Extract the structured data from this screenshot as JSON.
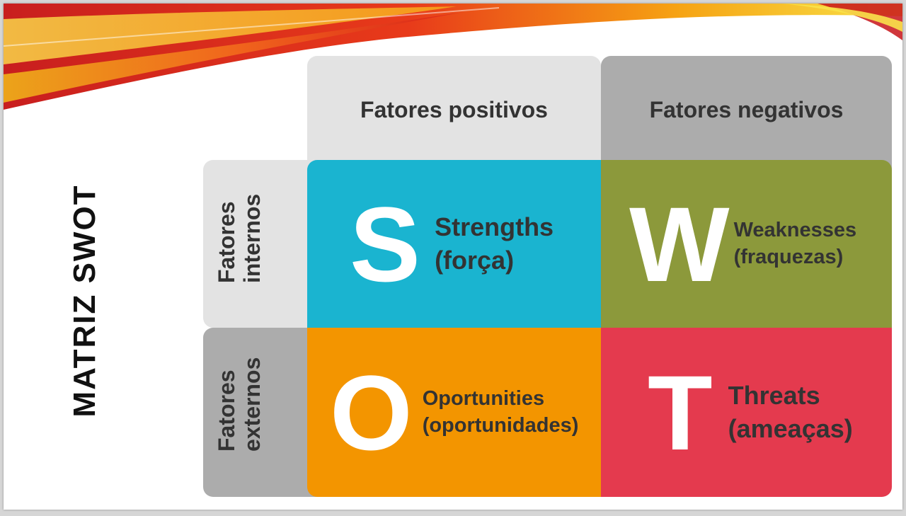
{
  "slide_title": "MATRIZ SWOT",
  "columns": {
    "positive": "Fatores positivos",
    "negative": "Fatores negativos"
  },
  "rows": {
    "internal": [
      "Fatores",
      "internos"
    ],
    "external": [
      "Fatores",
      "externos"
    ]
  },
  "quadrants": {
    "s": {
      "letter": "S",
      "line1": "Strengths",
      "line2": "(força)",
      "color": "#1ab4d0"
    },
    "w": {
      "letter": "W",
      "line1": "Weaknesses",
      "line2": "(fraquezas)",
      "color": "#8c993b"
    },
    "o": {
      "letter": "O",
      "line1": "Oportunities",
      "line2": "(oportunidades)",
      "color": "#f39500"
    },
    "t": {
      "letter": "T",
      "line1": "Threats",
      "line2": "(ameaças)",
      "color": "#e43a4e"
    }
  },
  "colors": {
    "header_light": "#e3e3e3",
    "header_dark": "#acacac",
    "text_dark": "#333333"
  }
}
